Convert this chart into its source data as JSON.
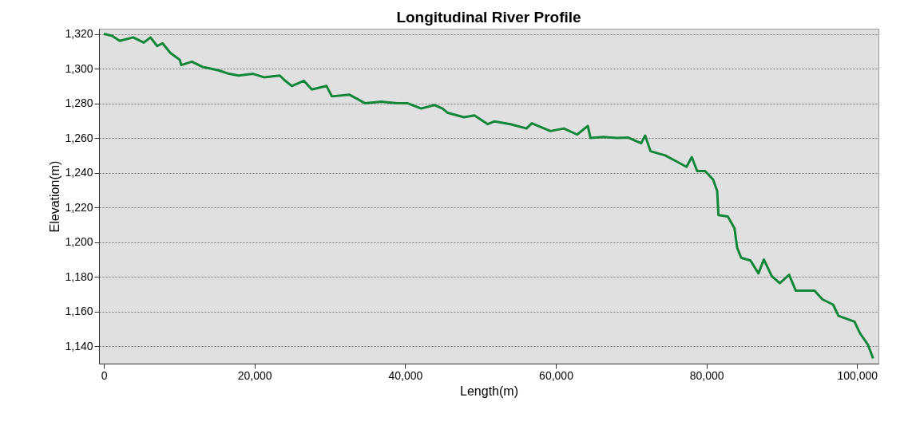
{
  "chart_data": {
    "type": "line",
    "title": "Longitudinal River Profile",
    "xlabel": "Length(m)",
    "ylabel": "Elevation(m)",
    "xlim": [
      -640,
      102830
    ],
    "ylim": [
      1130,
      1323
    ],
    "xticks": [
      0,
      {
        "value": 20000,
        "label": "20,000"
      },
      {
        "value": 40000,
        "label": "40,000"
      },
      {
        "value": 60000,
        "label": "60,000"
      },
      {
        "value": 80000,
        "label": "80,000"
      },
      {
        "value": 100000,
        "label": "100,000"
      }
    ],
    "yticks": [
      {
        "value": 1140,
        "label": "1,140"
      },
      {
        "value": 1160,
        "label": "1,160"
      },
      {
        "value": 1180,
        "label": "1,180"
      },
      {
        "value": 1200,
        "label": "1,200"
      },
      {
        "value": 1220,
        "label": "1,220"
      },
      {
        "value": 1240,
        "label": "1,240"
      },
      {
        "value": 1260,
        "label": "1,260"
      },
      {
        "value": 1280,
        "label": "1,280"
      },
      {
        "value": 1300,
        "label": "1,300"
      },
      {
        "value": 1320,
        "label": "1,320"
      }
    ],
    "grid": "y",
    "marker": "none",
    "line_style": "solid",
    "series": [
      {
        "color": "#12873a",
        "x": [
          0,
          1060,
          2120,
          3890,
          5310,
          6190,
          7080,
          7790,
          8850,
          10090,
          10270,
          11680,
          13100,
          14160,
          15220,
          16640,
          17880,
          19820,
          21240,
          23360,
          24070,
          24960,
          26550,
          27610,
          29560,
          30270,
          32570,
          33450,
          34690,
          36810,
          38940,
          40350,
          42120,
          43890,
          44960,
          45660,
          47790,
          49200,
          50970,
          51860,
          53980,
          56110,
          56810,
          59290,
          61060,
          62830,
          64250,
          64600,
          66370,
          68140,
          69560,
          71330,
          71860,
          72570,
          74510,
          75930,
          77350,
          78050,
          78760,
          79820,
          80880,
          81420,
          81590,
          82830,
          83720,
          84070,
          84600,
          85840,
          86900,
          87610,
          88670,
          89730,
          90970,
          91860,
          94340,
          95400,
          96810,
          97520,
          99650,
          100350,
          101420,
          102120
        ],
        "values": [
          1320,
          1319,
          1316,
          1318,
          1315,
          1318,
          1313,
          1314.6,
          1309,
          1305,
          1302,
          1304,
          1301,
          1300,
          1299,
          1297,
          1296,
          1297,
          1295,
          1296,
          1293,
          1290,
          1293,
          1288,
          1290,
          1284,
          1285,
          1283,
          1280,
          1281,
          1280,
          1280,
          1277,
          1279,
          1277,
          1274.5,
          1272,
          1273,
          1268,
          1269.6,
          1268,
          1265.5,
          1268.5,
          1264,
          1265.5,
          1262,
          1267,
          1260,
          1260.6,
          1260,
          1260.3,
          1257,
          1261.4,
          1252.4,
          1250,
          1246.7,
          1243.4,
          1249,
          1241,
          1241,
          1236,
          1229.5,
          1215.6,
          1214.8,
          1208,
          1196.8,
          1191,
          1189.4,
          1182,
          1190,
          1180.4,
          1176.3,
          1181.2,
          1172,
          1172,
          1167,
          1164,
          1157.5,
          1154.2,
          1147.7,
          1141,
          1133
        ]
      }
    ]
  }
}
